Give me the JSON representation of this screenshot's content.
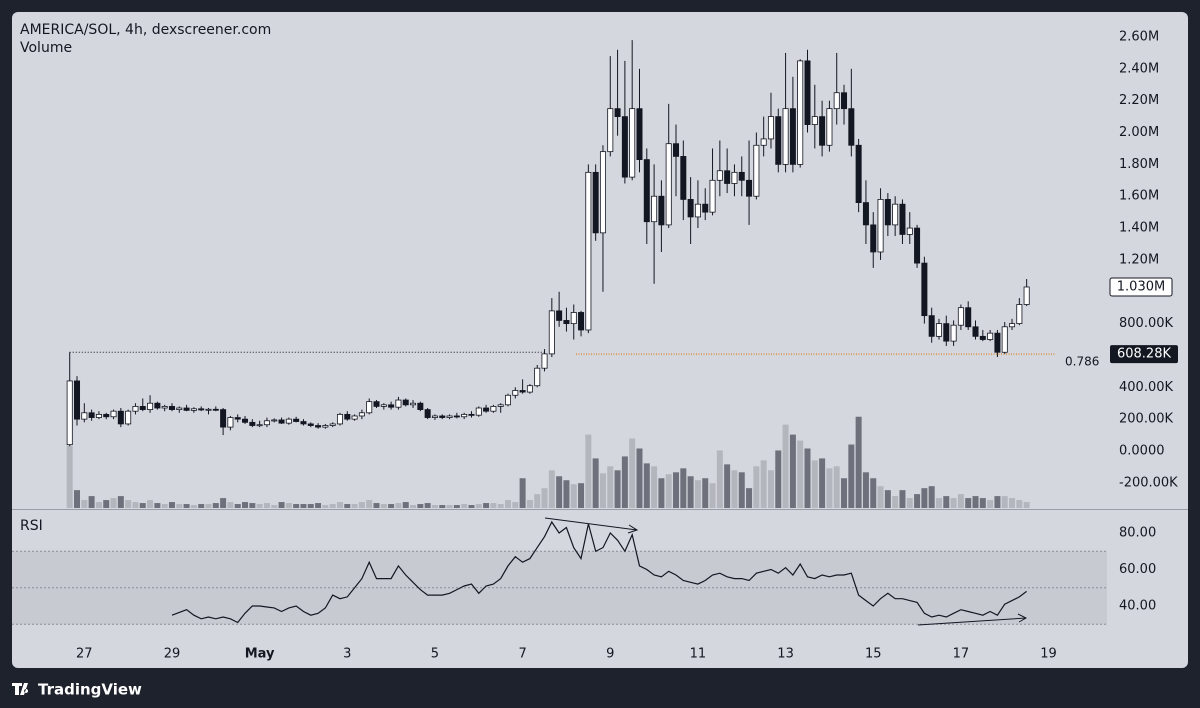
{
  "chart_data": {
    "type": "candlestick",
    "title": "AMERICA/SOL, 4h, dexscreener.com",
    "volume_label": "Volume",
    "rsi_label": "RSI",
    "up_color": "#ffffff",
    "down_color": "#131722",
    "wick_color": "#131722",
    "volume_up_color": "#b4b6be",
    "volume_down_color": "#6e717c",
    "rsi_color": "#131722",
    "xlim": [
      -7.9,
      142
    ],
    "ylim": [
      -358000,
      2757000
    ],
    "volume_ylim": [
      0,
      500
    ],
    "rsi_ylim": [
      21.4,
      91.5
    ],
    "xticks": [
      {
        "value": 2,
        "label": "27"
      },
      {
        "value": 14,
        "label": "29"
      },
      {
        "value": 26,
        "label": "May"
      },
      {
        "value": 38,
        "label": "3"
      },
      {
        "value": 50,
        "label": "5"
      },
      {
        "value": 62,
        "label": "7"
      },
      {
        "value": 74,
        "label": "9"
      },
      {
        "value": 86,
        "label": "11"
      },
      {
        "value": 98,
        "label": "13"
      },
      {
        "value": 110,
        "label": "15"
      },
      {
        "value": 122,
        "label": "17"
      },
      {
        "value": 134,
        "label": "19"
      }
    ],
    "yticks": [
      {
        "value": 2600000,
        "label": "2.60M"
      },
      {
        "value": 2400000,
        "label": "2.40M"
      },
      {
        "value": 2200000,
        "label": "2.20M"
      },
      {
        "value": 2000000,
        "label": "2.00M"
      },
      {
        "value": 1800000,
        "label": "1.80M"
      },
      {
        "value": 1600000,
        "label": "1.60M"
      },
      {
        "value": 1400000,
        "label": "1.40M"
      },
      {
        "value": 1200000,
        "label": "1.20M"
      },
      {
        "value": 800000,
        "label": "800.00K"
      },
      {
        "value": 400000,
        "label": "400.00K"
      },
      {
        "value": 200000,
        "label": "200.00K"
      },
      {
        "value": 0,
        "label": "0.0000"
      },
      {
        "value": -200000,
        "label": "-200.00K"
      }
    ],
    "rsi_ticks": [
      {
        "value": 80,
        "label": "80.00"
      },
      {
        "value": 60,
        "label": "60.00"
      },
      {
        "value": 40,
        "label": "40.00"
      }
    ],
    "rsi_bands": [
      70,
      50,
      30
    ],
    "last_price": {
      "value": 1030000,
      "label": "1.030M"
    },
    "fib": {
      "ratio": 0.786,
      "price": 608280,
      "price_label": "608.28K"
    },
    "ohlc": [
      [
        40000,
        620000,
        30000,
        440000
      ],
      [
        440000,
        470000,
        160000,
        200000
      ],
      [
        200000,
        300000,
        180000,
        240000
      ],
      [
        240000,
        260000,
        190000,
        210000
      ],
      [
        210000,
        250000,
        200000,
        230000
      ],
      [
        230000,
        240000,
        200000,
        215000
      ],
      [
        215000,
        260000,
        200000,
        250000
      ],
      [
        250000,
        270000,
        150000,
        170000
      ],
      [
        170000,
        260000,
        160000,
        250000
      ],
      [
        250000,
        300000,
        230000,
        280000
      ],
      [
        280000,
        330000,
        250000,
        260000
      ],
      [
        260000,
        350000,
        240000,
        300000
      ],
      [
        300000,
        310000,
        260000,
        270000
      ],
      [
        270000,
        290000,
        250000,
        280000
      ],
      [
        280000,
        300000,
        250000,
        260000
      ],
      [
        260000,
        280000,
        240000,
        270000
      ],
      [
        270000,
        290000,
        250000,
        255000
      ],
      [
        255000,
        275000,
        240000,
        265000
      ],
      [
        265000,
        280000,
        250000,
        258000
      ],
      [
        258000,
        270000,
        230000,
        262000
      ],
      [
        262000,
        280000,
        250000,
        260000
      ],
      [
        260000,
        270000,
        100000,
        150000
      ],
      [
        150000,
        220000,
        130000,
        210000
      ],
      [
        210000,
        230000,
        180000,
        200000
      ],
      [
        200000,
        220000,
        170000,
        180000
      ],
      [
        180000,
        200000,
        150000,
        160000
      ],
      [
        160000,
        190000,
        150000,
        165000
      ],
      [
        165000,
        210000,
        150000,
        190000
      ],
      [
        190000,
        205000,
        180000,
        195000
      ],
      [
        195000,
        210000,
        170000,
        175000
      ],
      [
        175000,
        210000,
        165000,
        200000
      ],
      [
        200000,
        215000,
        180000,
        185000
      ],
      [
        185000,
        200000,
        160000,
        170000
      ],
      [
        170000,
        180000,
        150000,
        160000
      ],
      [
        160000,
        175000,
        140000,
        150000
      ],
      [
        150000,
        170000,
        140000,
        160000
      ],
      [
        160000,
        180000,
        150000,
        170000
      ],
      [
        170000,
        240000,
        160000,
        230000
      ],
      [
        230000,
        250000,
        190000,
        200000
      ],
      [
        200000,
        230000,
        190000,
        220000
      ],
      [
        220000,
        260000,
        200000,
        240000
      ],
      [
        240000,
        330000,
        230000,
        310000
      ],
      [
        310000,
        320000,
        270000,
        280000
      ],
      [
        280000,
        300000,
        260000,
        290000
      ],
      [
        290000,
        310000,
        260000,
        275000
      ],
      [
        275000,
        340000,
        260000,
        320000
      ],
      [
        320000,
        330000,
        280000,
        290000
      ],
      [
        290000,
        320000,
        270000,
        300000
      ],
      [
        300000,
        310000,
        250000,
        260000
      ],
      [
        260000,
        270000,
        200000,
        210000
      ],
      [
        210000,
        230000,
        195000,
        220000
      ],
      [
        220000,
        230000,
        200000,
        210000
      ],
      [
        210000,
        230000,
        200000,
        220000
      ],
      [
        220000,
        240000,
        205000,
        215000
      ],
      [
        215000,
        240000,
        200000,
        230000
      ],
      [
        230000,
        250000,
        210000,
        225000
      ],
      [
        225000,
        280000,
        215000,
        270000
      ],
      [
        270000,
        290000,
        240000,
        250000
      ],
      [
        250000,
        290000,
        240000,
        280000
      ],
      [
        280000,
        300000,
        240000,
        290000
      ],
      [
        290000,
        360000,
        280000,
        350000
      ],
      [
        350000,
        400000,
        330000,
        380000
      ],
      [
        380000,
        450000,
        360000,
        370000
      ],
      [
        370000,
        420000,
        360000,
        410000
      ],
      [
        410000,
        540000,
        400000,
        520000
      ],
      [
        520000,
        640000,
        500000,
        610000
      ],
      [
        610000,
        960000,
        590000,
        880000
      ],
      [
        880000,
        1000000,
        780000,
        820000
      ],
      [
        820000,
        900000,
        750000,
        800000
      ],
      [
        800000,
        920000,
        700000,
        870000
      ],
      [
        870000,
        880000,
        720000,
        760000
      ],
      [
        760000,
        1800000,
        740000,
        1750000
      ],
      [
        1750000,
        1800000,
        1320000,
        1370000
      ],
      [
        1370000,
        1920000,
        1000000,
        1880000
      ],
      [
        1880000,
        2480000,
        1850000,
        2150000
      ],
      [
        2150000,
        2520000,
        1980000,
        2100000
      ],
      [
        2100000,
        2450000,
        1680000,
        1720000
      ],
      [
        1720000,
        2580000,
        1700000,
        2150000
      ],
      [
        2150000,
        2400000,
        1750000,
        1830000
      ],
      [
        1830000,
        1900000,
        1300000,
        1440000
      ],
      [
        1440000,
        1800000,
        1050000,
        1600000
      ],
      [
        1600000,
        1700000,
        1250000,
        1420000
      ],
      [
        1420000,
        2180000,
        1400000,
        1930000
      ],
      [
        1930000,
        2050000,
        1600000,
        1850000
      ],
      [
        1850000,
        1950000,
        1450000,
        1580000
      ],
      [
        1580000,
        1720000,
        1300000,
        1470000
      ],
      [
        1470000,
        1700000,
        1400000,
        1550000
      ],
      [
        1550000,
        1650000,
        1450000,
        1500000
      ],
      [
        1500000,
        1900000,
        1480000,
        1700000
      ],
      [
        1700000,
        1950000,
        1600000,
        1760000
      ],
      [
        1760000,
        1900000,
        1620000,
        1680000
      ],
      [
        1680000,
        1800000,
        1600000,
        1750000
      ],
      [
        1750000,
        1850000,
        1600000,
        1700000
      ],
      [
        1700000,
        1950000,
        1420000,
        1600000
      ],
      [
        1600000,
        2000000,
        1580000,
        1920000
      ],
      [
        1920000,
        2100000,
        1850000,
        1960000
      ],
      [
        1960000,
        2250000,
        1900000,
        2100000
      ],
      [
        2100000,
        2150000,
        1750000,
        1800000
      ],
      [
        1800000,
        2500000,
        1750000,
        2150000
      ],
      [
        2150000,
        2350000,
        1750000,
        1800000
      ],
      [
        1800000,
        2460000,
        1780000,
        2450000
      ],
      [
        2450000,
        2520000,
        2000000,
        2050000
      ],
      [
        2050000,
        2300000,
        1900000,
        2100000
      ],
      [
        2100000,
        2200000,
        1850000,
        1920000
      ],
      [
        1920000,
        2200000,
        1880000,
        2150000
      ],
      [
        2150000,
        2500000,
        2050000,
        2250000
      ],
      [
        2250000,
        2300000,
        2050000,
        2150000
      ],
      [
        2150000,
        2400000,
        1850000,
        1920000
      ],
      [
        1920000,
        1960000,
        1500000,
        1560000
      ],
      [
        1560000,
        1700000,
        1300000,
        1420000
      ],
      [
        1420000,
        1500000,
        1150000,
        1250000
      ],
      [
        1250000,
        1650000,
        1200000,
        1580000
      ],
      [
        1580000,
        1620000,
        1350000,
        1420000
      ],
      [
        1420000,
        1600000,
        1350000,
        1550000
      ],
      [
        1550000,
        1580000,
        1300000,
        1360000
      ],
      [
        1360000,
        1500000,
        1300000,
        1400000
      ],
      [
        1400000,
        1420000,
        1150000,
        1180000
      ],
      [
        1180000,
        1220000,
        800000,
        850000
      ],
      [
        850000,
        900000,
        680000,
        720000
      ],
      [
        720000,
        830000,
        700000,
        800000
      ],
      [
        800000,
        850000,
        660000,
        690000
      ],
      [
        690000,
        820000,
        660000,
        790000
      ],
      [
        790000,
        920000,
        760000,
        900000
      ],
      [
        900000,
        940000,
        760000,
        780000
      ],
      [
        780000,
        820000,
        700000,
        720000
      ],
      [
        720000,
        760000,
        690000,
        700000
      ],
      [
        700000,
        760000,
        690000,
        740000
      ],
      [
        740000,
        760000,
        590000,
        620000
      ],
      [
        620000,
        810000,
        610000,
        780000
      ],
      [
        780000,
        830000,
        760000,
        800000
      ],
      [
        800000,
        960000,
        790000,
        920000
      ],
      [
        920000,
        1080000,
        910000,
        1030000
      ]
    ],
    "volume": [
      63,
      18,
      8,
      12,
      6,
      8,
      10,
      12,
      8,
      6,
      5,
      8,
      5,
      4,
      6,
      4,
      4,
      3,
      4,
      4,
      5,
      10,
      6,
      4,
      6,
      5,
      4,
      5,
      3,
      6,
      5,
      4,
      4,
      4,
      5,
      3,
      4,
      6,
      4,
      4,
      6,
      8,
      5,
      4,
      4,
      5,
      6,
      3,
      4,
      5,
      3,
      3,
      3,
      3,
      4,
      3,
      4,
      5,
      5,
      4,
      8,
      6,
      30,
      8,
      14,
      20,
      38,
      32,
      28,
      24,
      25,
      74,
      50,
      35,
      42,
      38,
      52,
      70,
      60,
      45,
      42,
      30,
      34,
      36,
      40,
      32,
      28,
      30,
      25,
      58,
      44,
      38,
      36,
      20,
      42,
      48,
      38,
      58,
      84,
      74,
      68,
      60,
      48,
      50,
      40,
      42,
      30,
      64,
      92,
      36,
      30,
      22,
      18,
      12,
      18,
      10,
      14,
      20,
      22,
      10,
      12,
      10,
      14,
      10,
      12,
      10,
      8,
      12,
      12,
      10,
      8,
      6
    ],
    "rsi": [
      null,
      null,
      null,
      null,
      null,
      null,
      null,
      null,
      null,
      null,
      null,
      null,
      null,
      null,
      35,
      36.5,
      38,
      35,
      33,
      34,
      33,
      34,
      33,
      31,
      36,
      40,
      40,
      39.5,
      39,
      37,
      39,
      40,
      37,
      35,
      36,
      39,
      46,
      44,
      45,
      50,
      55,
      64,
      55,
      55,
      55,
      62,
      57,
      53,
      49,
      46,
      46,
      46,
      47,
      49,
      51,
      52,
      47,
      51,
      52,
      55,
      62,
      67,
      64,
      66,
      72,
      78,
      86,
      80,
      83,
      72,
      66,
      85,
      70,
      72,
      80,
      76,
      70,
      79,
      62,
      60,
      57,
      56,
      59,
      57,
      54,
      53,
      52,
      54,
      57,
      58,
      56,
      55,
      55,
      54,
      58,
      59,
      60,
      58,
      61,
      57,
      63,
      56,
      55,
      57,
      56,
      57,
      57,
      58,
      46,
      43,
      40,
      44,
      47,
      44,
      44,
      43,
      42,
      36,
      34,
      35,
      34,
      36,
      38,
      37,
      36,
      35,
      37,
      35,
      41,
      43,
      45,
      48
    ]
  },
  "branding": "TradingView"
}
